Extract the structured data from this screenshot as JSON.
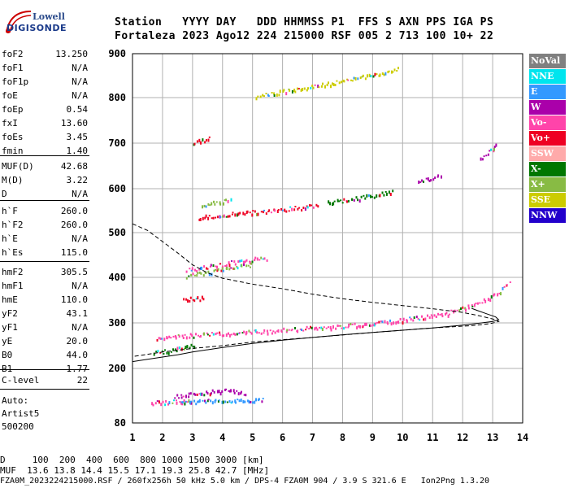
{
  "logo": {
    "line1": "Lowell",
    "line2": "DIGISONDE"
  },
  "header": {
    "line1": "Station   YYYY DAY   DDD HHMMSS P1  FFS S AXN PPS IGA PS",
    "line2": "Fortaleza 2023 Ago12 224 215000 RSF 005 2 713 100 10+ 22"
  },
  "params": [
    {
      "name": "foF2",
      "value": "13.250"
    },
    {
      "name": "foF1",
      "value": "N/A"
    },
    {
      "name": "foF1p",
      "value": "N/A"
    },
    {
      "name": "foE",
      "value": "N/A"
    },
    {
      "name": "foEp",
      "value": "0.54"
    },
    {
      "name": "fxI",
      "value": "13.60"
    },
    {
      "name": "foEs",
      "value": "3.45"
    },
    {
      "name": "fmin",
      "value": "1.40"
    },
    {
      "name": "MUF(D)",
      "value": "42.68"
    },
    {
      "name": "M(D)",
      "value": "3.22"
    },
    {
      "name": "D",
      "value": "N/A"
    },
    {
      "name": "h`F",
      "value": "260.0"
    },
    {
      "name": "h`F2",
      "value": "260.0"
    },
    {
      "name": "h`E",
      "value": "N/A"
    },
    {
      "name": "h`Es",
      "value": "115.0"
    },
    {
      "name": "hmF2",
      "value": "305.5"
    },
    {
      "name": "hmF1",
      "value": "N/A"
    },
    {
      "name": "hmE",
      "value": "110.0"
    },
    {
      "name": "yF2",
      "value": "43.1"
    },
    {
      "name": "yF1",
      "value": "N/A"
    },
    {
      "name": "yE",
      "value": "20.0"
    },
    {
      "name": "B0",
      "value": "44.0"
    },
    {
      "name": "B1",
      "value": "1.77"
    },
    {
      "name": "C-level",
      "value": "22"
    }
  ],
  "auto_text": [
    "Auto:",
    "Artist5",
    "500200"
  ],
  "footer": {
    "line1": "D     100  200  400  600  800 1000 1500 3000 [km]",
    "line2": "MUF  13.6 13.8 14.4 15.5 17.1 19.3 25.8 42.7 [MHz]",
    "line3": "FZA0M_2023224215000.RSF / 260fx256h 50 kHz 5.0 km / DPS-4 FZA0M 904 / 3.9 S 321.6 E   Ion2Png 1.3.20"
  },
  "legend": [
    {
      "label": "NoVal",
      "color": "#808080"
    },
    {
      "label": "NNE",
      "color": "#00e5ee"
    },
    {
      "label": "E",
      "color": "#3399ff"
    },
    {
      "label": "W",
      "color": "#aa00aa"
    },
    {
      "label": "Vo-",
      "color": "#ff44aa"
    },
    {
      "label": "Vo+",
      "color": "#ee0022"
    },
    {
      "label": "SSW",
      "color": "#ffaaaa"
    },
    {
      "label": "X-",
      "color": "#007700"
    },
    {
      "label": "X+",
      "color": "#88bb44"
    },
    {
      "label": "SSE",
      "color": "#cccc00"
    },
    {
      "label": "NNW",
      "color": "#2200cc"
    }
  ],
  "chart_data": {
    "type": "scatter",
    "x_range": [
      1,
      14
    ],
    "y_range": [
      80,
      900
    ],
    "x_ticks": [
      1,
      2,
      3,
      4,
      5,
      6,
      7,
      8,
      9,
      10,
      11,
      12,
      13,
      14
    ],
    "y_ticks": [
      80,
      200,
      300,
      400,
      500,
      600,
      700,
      800,
      900
    ],
    "grid": true,
    "legend_position": "right",
    "traces": [
      {
        "series": "Vo-",
        "points": [
          [
            1.8,
            265
          ],
          [
            2.5,
            272
          ],
          [
            3.5,
            276
          ],
          [
            4.5,
            280
          ],
          [
            5.5,
            283
          ],
          [
            6.5,
            288
          ],
          [
            7.5,
            292
          ],
          [
            8.5,
            297
          ],
          [
            9.5,
            303
          ],
          [
            10.5,
            312
          ],
          [
            11.5,
            322
          ],
          [
            12.5,
            345
          ],
          [
            13.0,
            360
          ],
          [
            13.6,
            390
          ]
        ]
      },
      {
        "series": "Vo-",
        "points": [
          [
            1.6,
            125
          ],
          [
            2.1,
            127
          ],
          [
            2.6,
            129
          ],
          [
            3.0,
            131
          ]
        ]
      },
      {
        "series": "X-",
        "points": [
          [
            1.7,
            235
          ],
          [
            2.2,
            240
          ],
          [
            2.8,
            248
          ],
          [
            3.1,
            252
          ]
        ]
      },
      {
        "series": "Vo-",
        "points": [
          [
            2.8,
            418
          ],
          [
            3.3,
            422
          ],
          [
            3.8,
            428
          ],
          [
            4.3,
            434
          ],
          [
            4.8,
            440
          ],
          [
            5.5,
            445
          ]
        ]
      },
      {
        "series": "X+",
        "points": [
          [
            2.8,
            405
          ],
          [
            3.5,
            413
          ],
          [
            4.2,
            421
          ],
          [
            5.0,
            430
          ]
        ]
      },
      {
        "series": "Vo+",
        "points": [
          [
            3.2,
            535
          ],
          [
            3.8,
            539
          ],
          [
            4.4,
            544
          ],
          [
            5.0,
            548
          ],
          [
            5.8,
            553
          ],
          [
            6.6,
            558
          ],
          [
            7.2,
            563
          ]
        ]
      },
      {
        "series": "X-",
        "points": [
          [
            7.5,
            570
          ],
          [
            8.2,
            576
          ],
          [
            8.8,
            583
          ],
          [
            9.3,
            590
          ],
          [
            9.7,
            595
          ]
        ]
      },
      {
        "series": "X+",
        "points": [
          [
            3.3,
            565
          ],
          [
            3.8,
            570
          ],
          [
            4.3,
            576
          ]
        ]
      },
      {
        "series": "W",
        "points": [
          [
            2.4,
            140
          ],
          [
            3.0,
            145
          ],
          [
            3.6,
            149
          ],
          [
            4.1,
            154
          ],
          [
            4.8,
            145
          ]
        ]
      },
      {
        "series": "E",
        "points": [
          [
            2.6,
            128
          ],
          [
            3.3,
            129
          ],
          [
            4.0,
            130
          ],
          [
            4.8,
            131
          ],
          [
            5.4,
            131
          ]
        ]
      },
      {
        "series": "SSE",
        "points": [
          [
            5.1,
            805
          ],
          [
            5.6,
            810
          ],
          [
            6.1,
            816
          ],
          [
            6.6,
            822
          ],
          [
            7.2,
            828
          ],
          [
            7.8,
            836
          ],
          [
            8.3,
            842
          ],
          [
            8.8,
            850
          ],
          [
            9.3,
            858
          ],
          [
            9.9,
            867
          ]
        ]
      },
      {
        "series": "Vo+",
        "points": [
          [
            3.0,
            703
          ],
          [
            3.3,
            707
          ],
          [
            3.6,
            712
          ]
        ]
      },
      {
        "series": "W",
        "points": [
          [
            10.5,
            615
          ],
          [
            11.0,
            625
          ],
          [
            11.3,
            635
          ]
        ]
      },
      {
        "series": "W",
        "points": [
          [
            12.6,
            668
          ],
          [
            13.0,
            688
          ],
          [
            13.1,
            700
          ]
        ]
      },
      {
        "series": "Vo+",
        "points": [
          [
            2.7,
            352
          ],
          [
            3.0,
            354
          ],
          [
            3.4,
            356
          ]
        ]
      }
    ],
    "profile_dashed": [
      [
        1.0,
        520
      ],
      [
        1.5,
        505
      ],
      [
        2.0,
        480
      ],
      [
        2.5,
        455
      ],
      [
        3.0,
        428
      ],
      [
        3.5,
        410
      ],
      [
        4.0,
        398
      ],
      [
        5.0,
        385
      ],
      [
        6.0,
        375
      ],
      [
        7.0,
        363
      ],
      [
        8.0,
        353
      ],
      [
        9.0,
        345
      ],
      [
        10.0,
        338
      ],
      [
        11.0,
        331
      ],
      [
        12.0,
        323
      ],
      [
        12.6,
        315
      ],
      [
        13.1,
        307
      ],
      [
        13.2,
        303
      ],
      [
        12.9,
        298
      ],
      [
        12.3,
        294
      ],
      [
        11.0,
        289
      ],
      [
        9.0,
        279
      ],
      [
        7.0,
        268
      ],
      [
        5.0,
        258
      ],
      [
        4.0,
        250
      ],
      [
        3.0,
        244
      ],
      [
        2.0,
        236
      ],
      [
        1.4,
        230
      ],
      [
        1.0,
        226
      ]
    ],
    "profile_solid": [
      [
        1.0,
        215
      ],
      [
        1.5,
        220
      ],
      [
        2.0,
        225
      ],
      [
        2.5,
        230
      ],
      [
        3.0,
        236
      ],
      [
        4.0,
        246
      ],
      [
        5.0,
        255
      ],
      [
        6.0,
        262
      ],
      [
        7.0,
        268
      ],
      [
        8.0,
        274
      ],
      [
        9.0,
        279
      ],
      [
        10.0,
        284
      ],
      [
        11.0,
        289
      ],
      [
        11.5,
        292
      ],
      [
        12.0,
        295
      ],
      [
        12.5,
        299
      ],
      [
        13.0,
        303
      ],
      [
        13.2,
        307
      ],
      [
        13.1,
        313
      ],
      [
        12.8,
        320
      ],
      [
        12.5,
        327
      ],
      [
        12.3,
        332
      ]
    ]
  }
}
